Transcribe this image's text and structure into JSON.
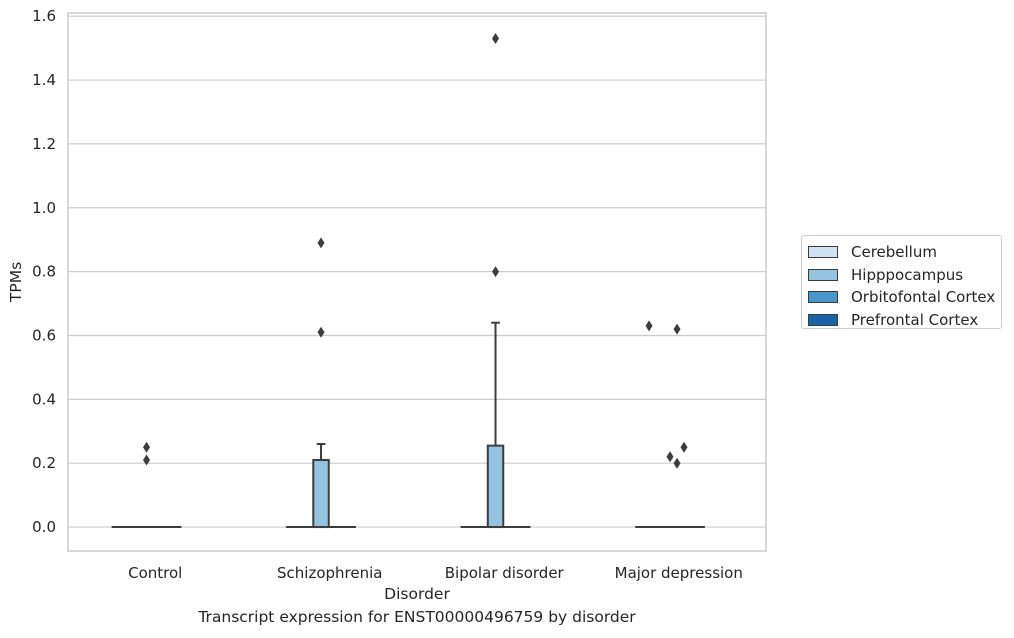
{
  "caption": "Transcript expression for ENST00000496759 by disorder",
  "chart_data": {
    "type": "box",
    "title": "",
    "xlabel": "Disorder",
    "ylabel": "TPMs",
    "ylim": [
      -0.075,
      1.61
    ],
    "yticks": [
      0.0,
      0.2,
      0.4,
      0.6,
      0.8,
      1.0,
      1.2,
      1.4,
      1.6
    ],
    "ytick_labels": [
      "0.0",
      "0.2",
      "0.4",
      "0.6",
      "0.8",
      "1.0",
      "1.2",
      "1.4",
      "1.6"
    ],
    "grid": true,
    "legend_position": "right",
    "categories": [
      "Control",
      "Schizophrenia",
      "Bipolar disorder",
      "Major depression"
    ],
    "series": [
      {
        "name": "Cerebellum",
        "color": "#d0e1f2"
      },
      {
        "name": "Hipppocampus",
        "color": "#94c4df"
      },
      {
        "name": "Orbitofontal Cortex",
        "color": "#4a98c9"
      },
      {
        "name": "Prefrontal Cortex",
        "color": "#1764ab"
      }
    ],
    "boxes": [
      {
        "category": "Control",
        "series": "Hipppocampus",
        "q1": 0.0,
        "median": 0.0,
        "q3": 0.0,
        "whisker_low": 0.0,
        "whisker_high": 0.0,
        "outliers": [
          0.21,
          0.25
        ]
      },
      {
        "category": "Schizophrenia",
        "series": "Hipppocampus",
        "q1": 0.0,
        "median": 0.0,
        "q3": 0.21,
        "whisker_low": 0.0,
        "whisker_high": 0.26,
        "outliers": [
          0.61,
          0.89
        ]
      },
      {
        "category": "Bipolar disorder",
        "series": "Hipppocampus",
        "q1": 0.0,
        "median": 0.0,
        "q3": 0.255,
        "whisker_low": 0.0,
        "whisker_high": 0.64,
        "outliers": [
          0.8,
          1.53
        ]
      },
      {
        "category": "Major depression",
        "series": "Hipppocampus",
        "q1": 0.0,
        "median": 0.0,
        "q3": 0.0,
        "whisker_low": 0.0,
        "whisker_high": 0.0,
        "outliers": [
          0.2,
          0.22,
          0.25,
          0.62,
          0.63
        ]
      }
    ]
  }
}
